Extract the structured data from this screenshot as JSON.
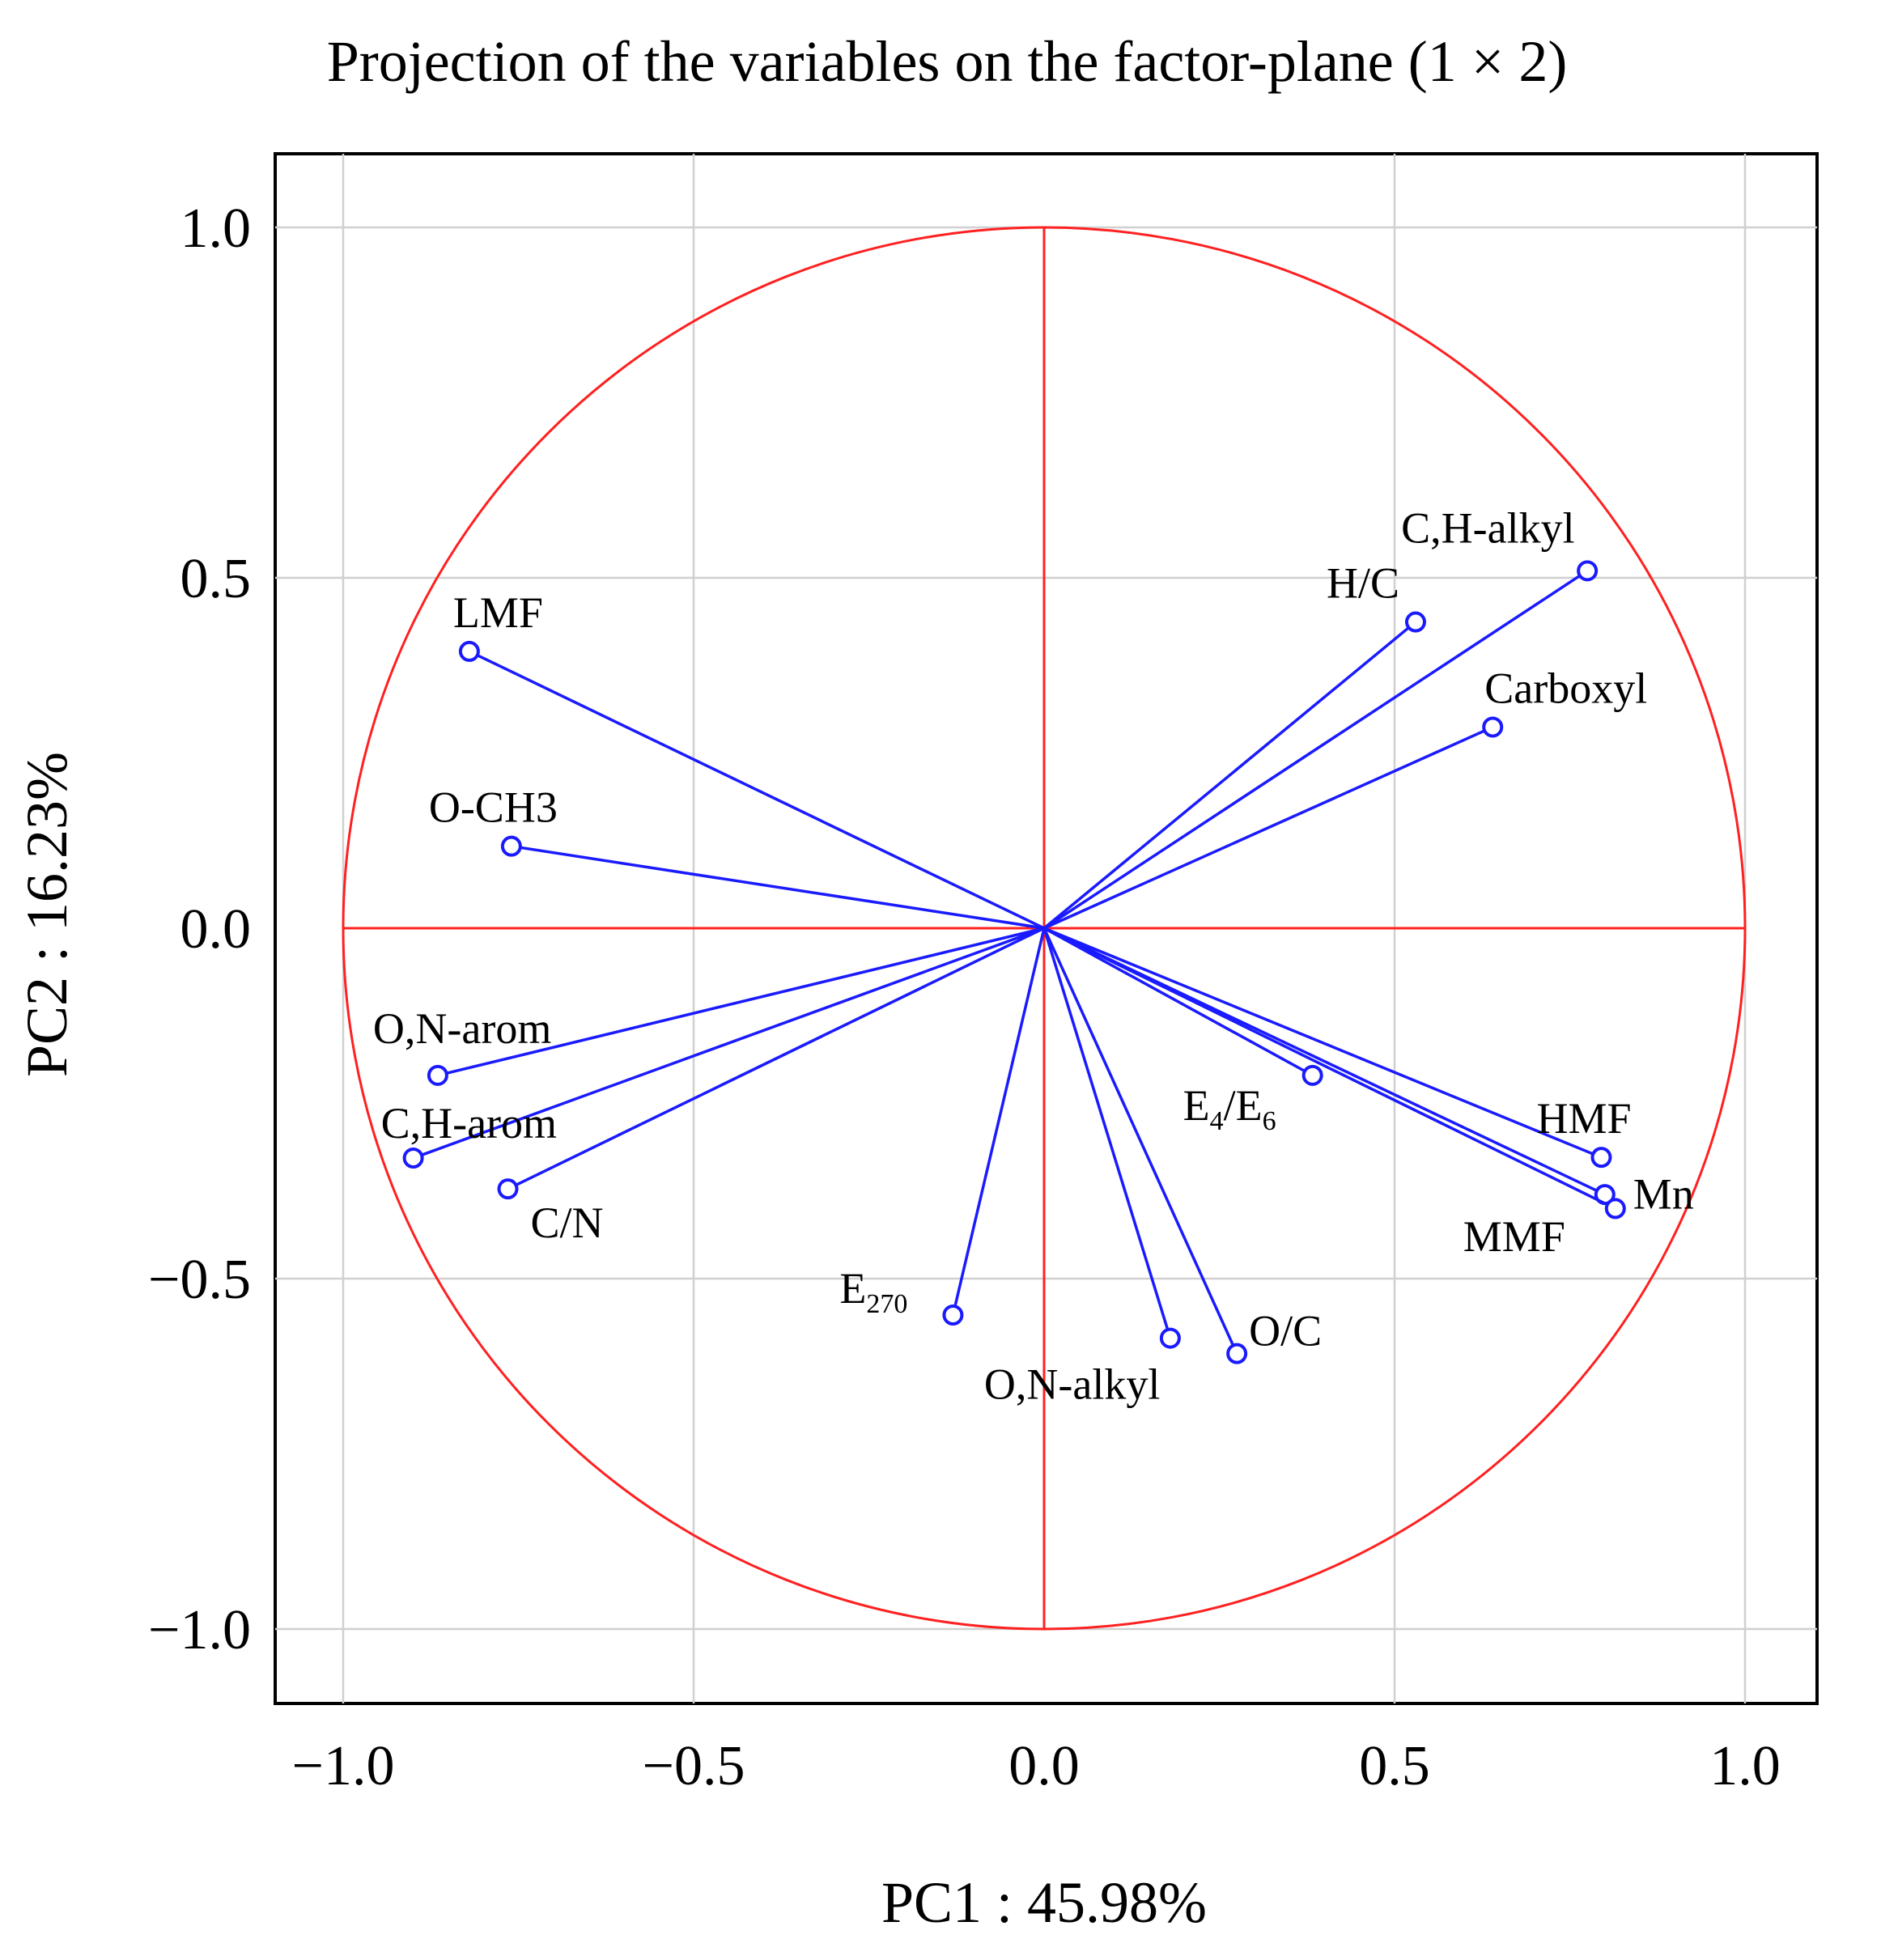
{
  "chart_data": {
    "type": "scatter",
    "subtype": "pca-correlation-circle",
    "title": "Projection of the variables on the factor-plane (1 × 2)",
    "xlabel": "PC1 : 45.98%",
    "ylabel": "PC2 : 16.23%",
    "xlim": [
      -1.1,
      1.1
    ],
    "ylim": [
      -1.1,
      1.1
    ],
    "xticks": [
      -1.0,
      -0.5,
      0.0,
      0.5,
      1.0
    ],
    "yticks": [
      -1.0,
      -0.5,
      0.0,
      0.5,
      1.0
    ],
    "xtick_labels": [
      "−1.0",
      "−0.5",
      "0.0",
      "0.5",
      "1.0"
    ],
    "ytick_labels": [
      "1.0",
      "0.5",
      "0.0",
      "−0.5",
      "−1.0"
    ],
    "grid": true,
    "unit_circle": true,
    "colors": {
      "vectors": "#1a1aff",
      "circle": "#ff2020",
      "grid": "#d0d0d0"
    },
    "variables": [
      {
        "name": "C,H-alkyl",
        "x": 0.775,
        "y": 0.51
      },
      {
        "name": "H/C",
        "x": 0.53,
        "y": 0.437
      },
      {
        "name": "Carboxyl",
        "x": 0.64,
        "y": 0.287
      },
      {
        "name": "LMF",
        "x": -0.82,
        "y": 0.395
      },
      {
        "name": "O-CH3",
        "x": -0.76,
        "y": 0.117
      },
      {
        "name": "O,N-arom",
        "x": -0.865,
        "y": -0.21
      },
      {
        "name": "C,H-arom",
        "x": -0.9,
        "y": -0.328
      },
      {
        "name": "C/N",
        "x": -0.765,
        "y": -0.372
      },
      {
        "name": "E270",
        "display": "E",
        "sub": "270",
        "x": -0.13,
        "y": -0.552
      },
      {
        "name": "O,N-alkyl",
        "x": 0.18,
        "y": -0.585
      },
      {
        "name": "O/C",
        "x": 0.275,
        "y": -0.607
      },
      {
        "name": "E4/E6",
        "display": "E",
        "sub": "4",
        "display2": "/E",
        "sub2": "6",
        "x": 0.383,
        "y": -0.21
      },
      {
        "name": "HMF",
        "x": 0.795,
        "y": -0.327
      },
      {
        "name": "MMF",
        "x": 0.8,
        "y": -0.38
      },
      {
        "name": "Mn",
        "x": 0.815,
        "y": -0.4
      }
    ]
  }
}
